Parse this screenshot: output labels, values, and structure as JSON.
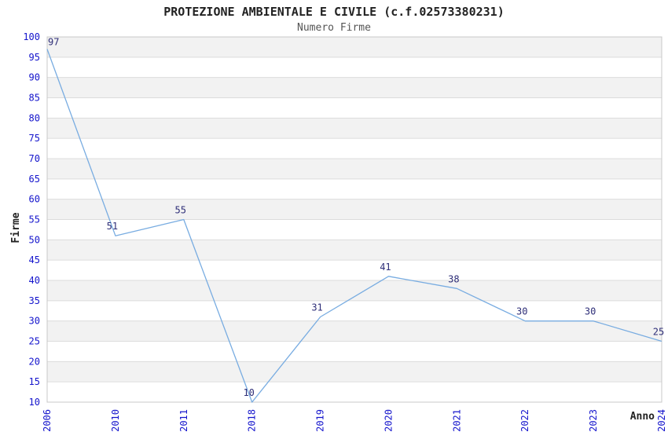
{
  "chart_data": {
    "type": "line",
    "title": "PROTEZIONE AMBIENTALE E CIVILE (c.f.02573380231)",
    "subtitle": "Numero Firme",
    "xlabel": "Anno",
    "ylabel": "Firme",
    "categories": [
      "2006",
      "2010",
      "2011",
      "2018",
      "2019",
      "2020",
      "2021",
      "2022",
      "2023",
      "2024"
    ],
    "values": [
      97,
      51,
      55,
      10,
      31,
      41,
      38,
      30,
      30,
      25
    ],
    "ylim": [
      10,
      100
    ],
    "ytick_step": 5,
    "grid": "horizontal-bands-alternating",
    "legend": "none",
    "colors": {
      "line": "#78ACE1",
      "tick_labels": "#1414CC",
      "data_labels": "#2E2E78",
      "band_gray": "#F2F2F2",
      "band_white": "#FFFFFF",
      "gridline": "#DCDCDC",
      "plot_border": "#C8C8C8",
      "title_text": "#222222",
      "subtitle_text": "#555555"
    }
  }
}
